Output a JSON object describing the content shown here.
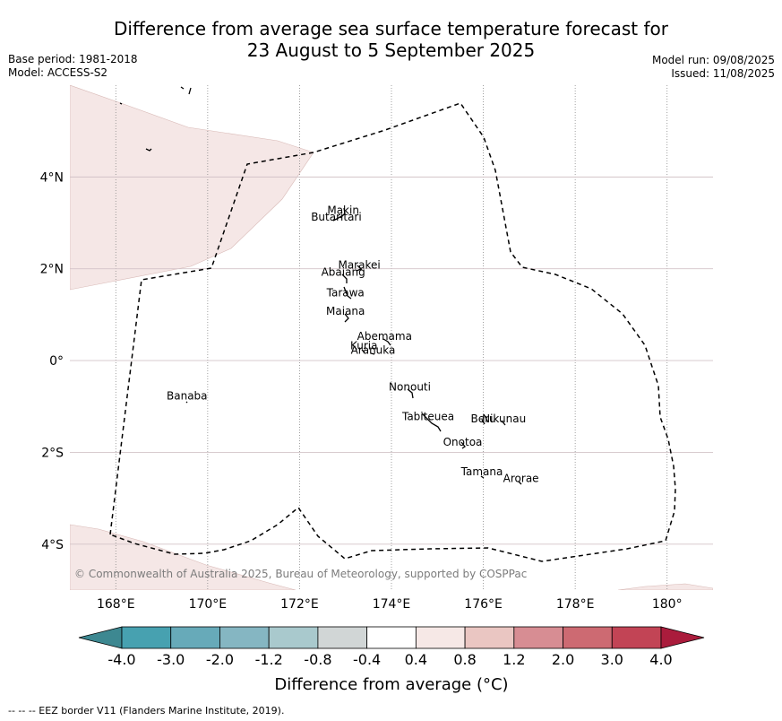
{
  "header": {
    "title_line1": "Difference from average sea surface temperature forecast for",
    "title_line2": "23 August to 5 September 2025",
    "base_period": "Base period: 1981-2018",
    "model": "Model: ACCESS-S2",
    "model_run": "Model run: 09/08/2025",
    "issued": "Issued: 11/08/2025"
  },
  "map": {
    "lon_range": [
      167.0,
      181.0
    ],
    "lat_range": [
      -5.0,
      6.0
    ],
    "lon_ticks": [
      {
        "value": 168,
        "label": "168°E"
      },
      {
        "value": 170,
        "label": "170°E"
      },
      {
        "value": 172,
        "label": "172°E"
      },
      {
        "value": 174,
        "label": "174°E"
      },
      {
        "value": 176,
        "label": "176°E"
      },
      {
        "value": 178,
        "label": "178°E"
      },
      {
        "value": 180,
        "label": "180°"
      }
    ],
    "lat_ticks": [
      {
        "value": 4,
        "label": "4°N"
      },
      {
        "value": 2,
        "label": "2°N"
      },
      {
        "value": 0,
        "label": "0°"
      },
      {
        "value": -2,
        "label": "2°S"
      },
      {
        "value": -4,
        "label": "4°S"
      }
    ],
    "anomaly_fill_color": "#f5e7e6",
    "islands": [
      {
        "name": "Makin",
        "lon": 172.95,
        "lat": 3.2
      },
      {
        "name": "Butaritari",
        "lon": 172.8,
        "lat": 3.05
      },
      {
        "name": "Marakei",
        "lon": 173.3,
        "lat": 2.0
      },
      {
        "name": "Abaiang",
        "lon": 172.95,
        "lat": 1.85
      },
      {
        "name": "Tarawa",
        "lon": 173.0,
        "lat": 1.4
      },
      {
        "name": "Maiana",
        "lon": 173.0,
        "lat": 1.0
      },
      {
        "name": "Abemama",
        "lon": 173.85,
        "lat": 0.45
      },
      {
        "name": "Kuria",
        "lon": 173.4,
        "lat": 0.25
      },
      {
        "name": "Aranuka",
        "lon": 173.6,
        "lat": 0.15
      },
      {
        "name": "Nonouti",
        "lon": 174.4,
        "lat": -0.65
      },
      {
        "name": "Tabiteuea",
        "lon": 174.8,
        "lat": -1.3
      },
      {
        "name": "Beru",
        "lon": 176.0,
        "lat": -1.35
      },
      {
        "name": "Nikunau",
        "lon": 176.45,
        "lat": -1.35
      },
      {
        "name": "Onotoa",
        "lon": 175.55,
        "lat": -1.85
      },
      {
        "name": "Tamana",
        "lon": 175.97,
        "lat": -2.5
      },
      {
        "name": "Arorae",
        "lon": 176.82,
        "lat": -2.65
      },
      {
        "name": "Banaba",
        "lon": 169.55,
        "lat": -0.85
      }
    ],
    "copyright": "© Commonwealth of Australia 2025, Bureau of Meteorology, supported by COSPPac"
  },
  "colorbar": {
    "colors": [
      "#3d8891",
      "#47a1b0",
      "#67aab9",
      "#85b6c2",
      "#a9c9cd",
      "#d1d6d6",
      "#ffffff",
      "#f6e8e6",
      "#eac6c2",
      "#d78d93",
      "#cd6a72",
      "#c24455",
      "#aa1c3c"
    ],
    "labels": [
      "-4.0",
      "-3.0",
      "-2.0",
      "-1.2",
      "-0.8",
      "-0.4",
      "0.4",
      "0.8",
      "1.2",
      "2.0",
      "3.0",
      "4.0"
    ],
    "title": "Difference from average (°C)"
  },
  "footer": {
    "eez_note": "--  --  -- EEZ border V11 (Flanders Marine Institute, 2019)."
  }
}
